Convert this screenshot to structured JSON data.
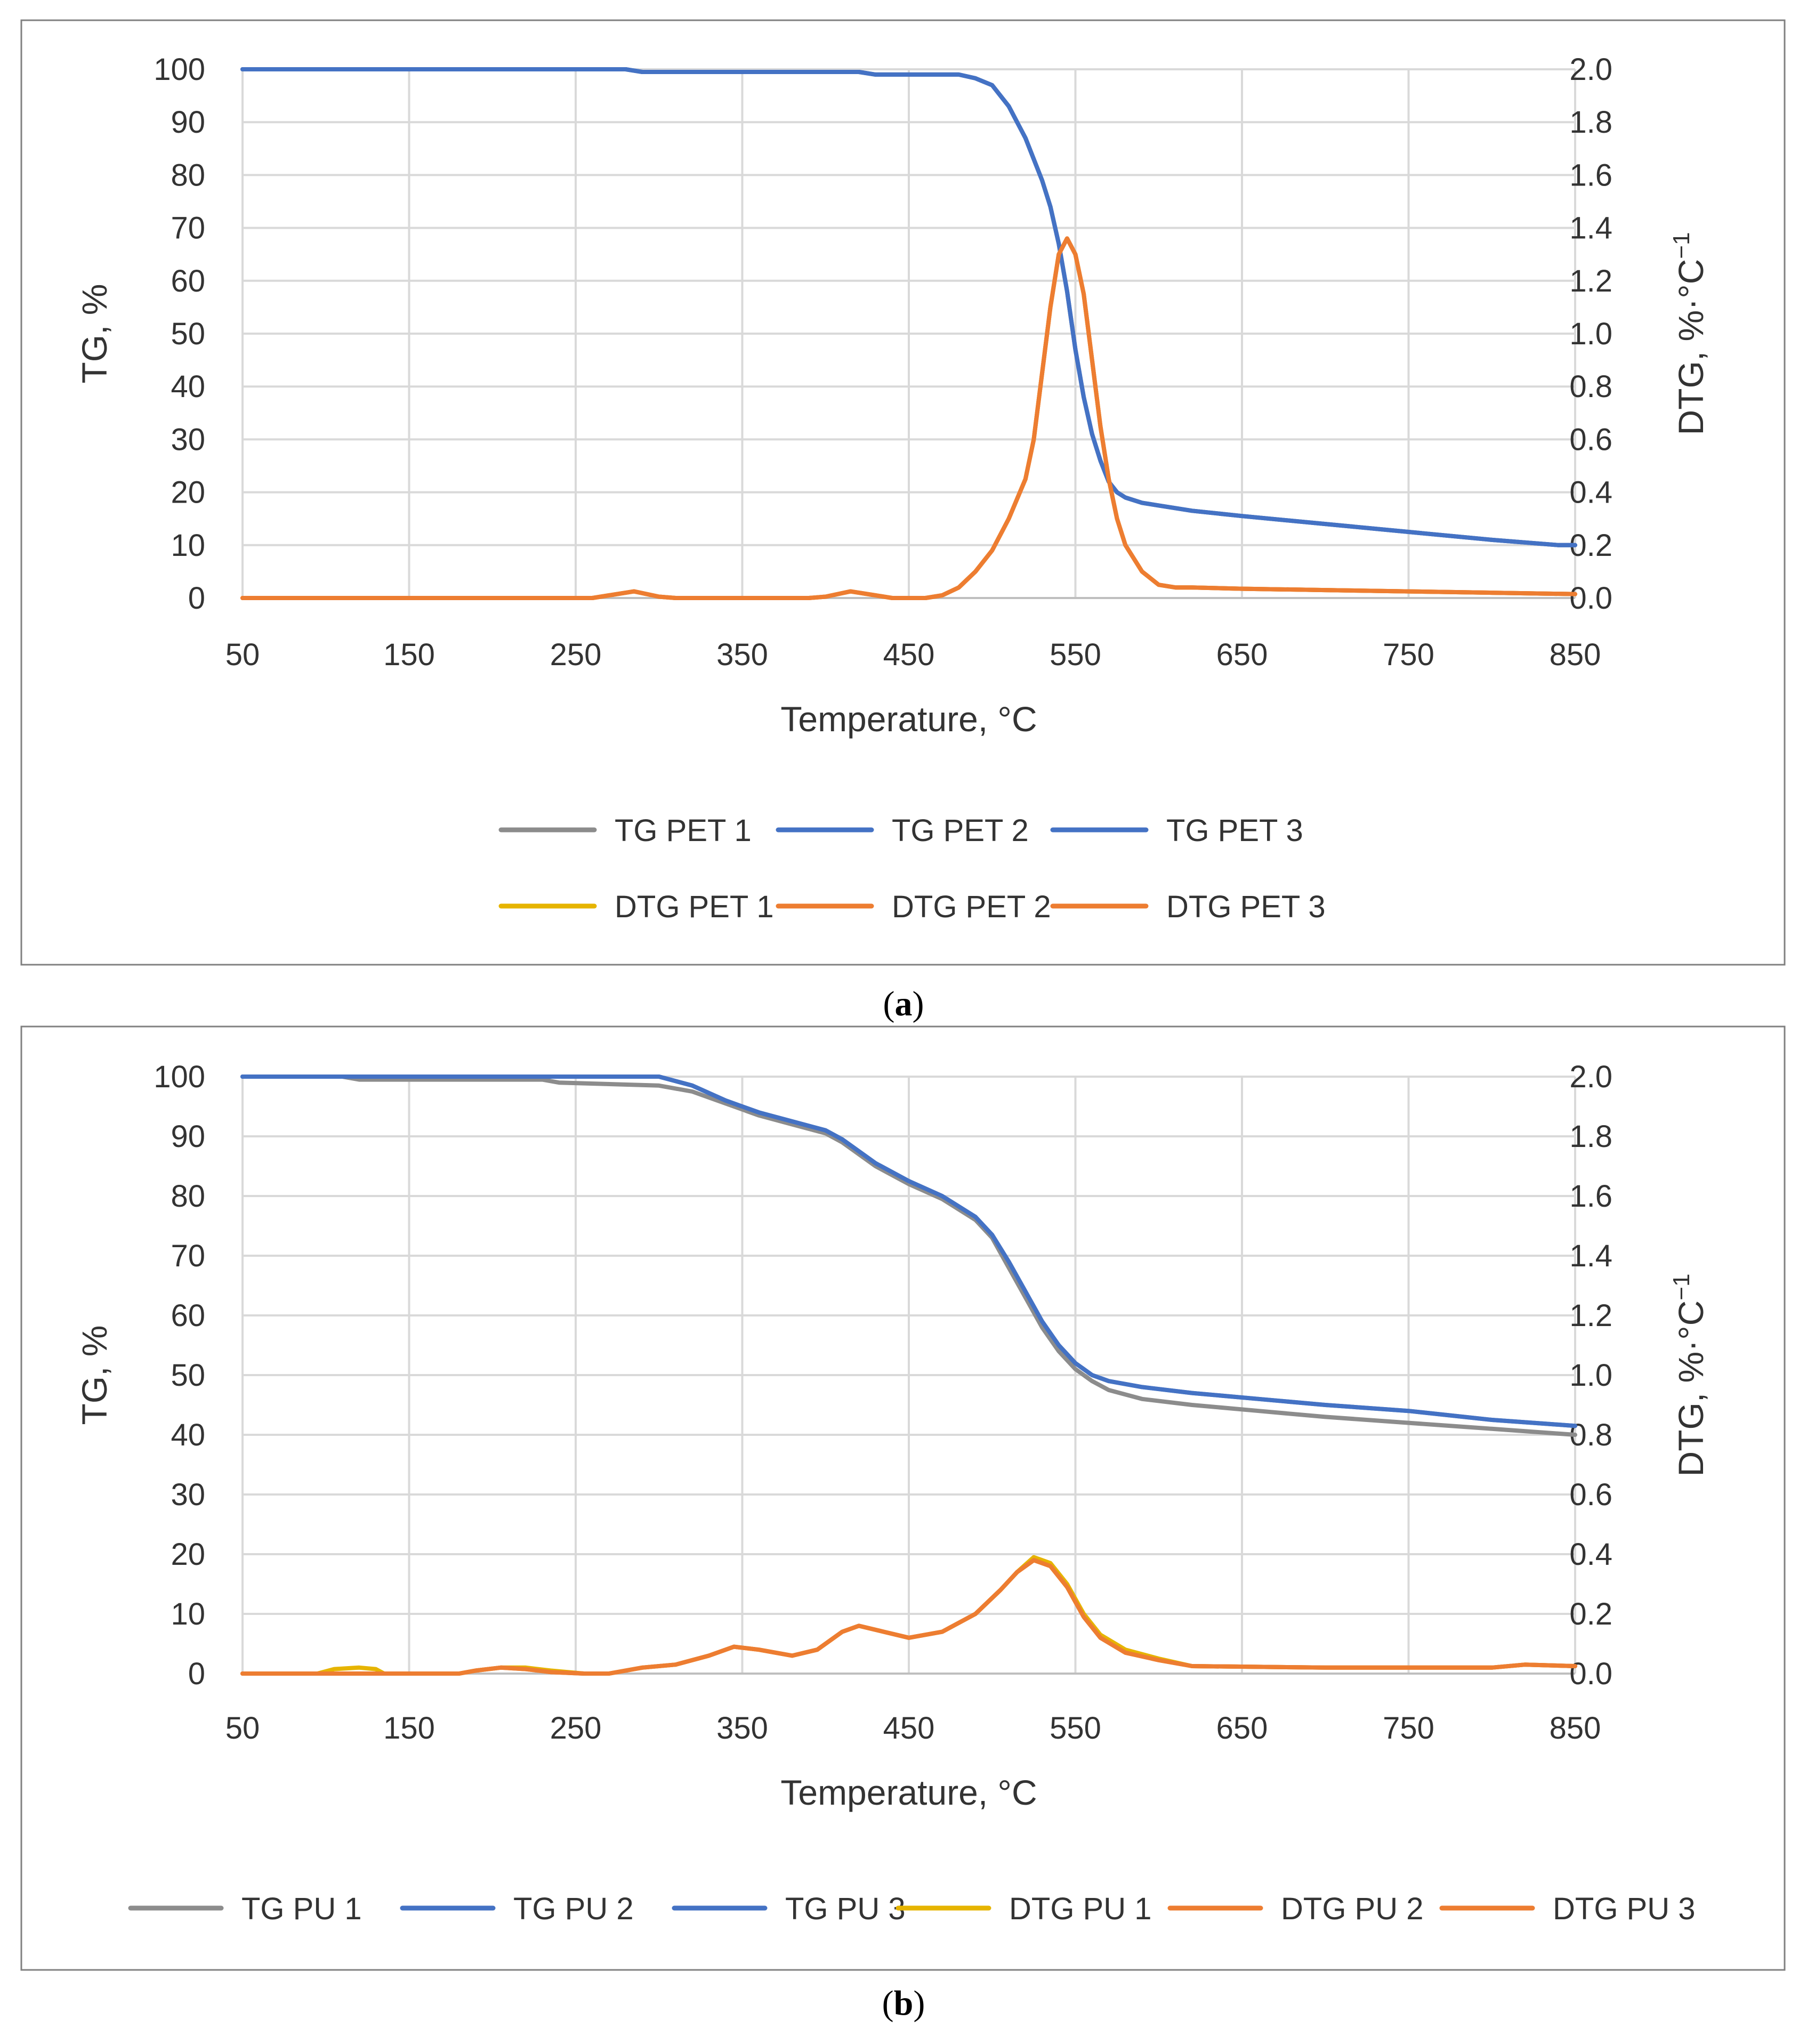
{
  "colors": {
    "tg_gray": "#8c8c8c",
    "tg_blue": "#4472c4",
    "dtg_yellow": "#e6b400",
    "dtg_orange": "#ed7d31",
    "grid": "#d9d9d9",
    "frame": "#808080",
    "text": "#333333"
  },
  "chart_data": [
    {
      "type": "line",
      "panel": "a",
      "caption": {
        "open": "(",
        "letter": "a",
        "close": ")"
      },
      "xlabel": "Temperature, °C",
      "ylabel": "TG, %",
      "y2label": "DTG, %·°C",
      "y2label_sup": "−1",
      "xlim": [
        50,
        850
      ],
      "ylim": [
        0,
        100
      ],
      "y2lim": [
        0,
        2.0
      ],
      "xticks": [
        "50",
        "150",
        "250",
        "350",
        "450",
        "550",
        "650",
        "750",
        "850"
      ],
      "yticks": [
        "0",
        "10",
        "20",
        "30",
        "40",
        "50",
        "60",
        "70",
        "80",
        "90",
        "100"
      ],
      "y2ticks": [
        "0.0",
        "0.2",
        "0.4",
        "0.6",
        "0.8",
        "1.0",
        "1.2",
        "1.4",
        "1.6",
        "1.8",
        "2.0"
      ],
      "grid": true,
      "legend_rows": [
        [
          "TG PET  1",
          "TG PET  2",
          "TG PET  3"
        ],
        [
          "DTG PET 1",
          "DTG PET 2",
          "DTG PET 3"
        ]
      ],
      "series": [
        {
          "name": "TG PET  1",
          "axis": "left",
          "color": "#8c8c8c",
          "x": [
            50,
            280,
            290,
            420,
            430,
            480,
            490,
            500,
            510,
            520,
            530,
            535,
            540,
            545,
            550,
            555,
            560,
            565,
            570,
            575,
            580,
            590,
            600,
            620,
            650,
            700,
            750,
            800,
            840,
            850
          ],
          "y": [
            100,
            100,
            99.5,
            99.5,
            99,
            99,
            98.3,
            97,
            93,
            87,
            79,
            74,
            67,
            58,
            47,
            38,
            31,
            26,
            22,
            20,
            19,
            18,
            17.5,
            16.5,
            15.5,
            14,
            12.5,
            11,
            10,
            10
          ]
        },
        {
          "name": "TG PET  2",
          "axis": "left",
          "color": "#4472c4",
          "x": [
            50,
            280,
            290,
            420,
            430,
            480,
            490,
            500,
            510,
            520,
            530,
            535,
            540,
            545,
            550,
            555,
            560,
            565,
            570,
            575,
            580,
            590,
            600,
            620,
            650,
            700,
            750,
            800,
            840,
            850
          ],
          "y": [
            100,
            100,
            99.5,
            99.5,
            99,
            99,
            98.3,
            97,
            93,
            87,
            79,
            74,
            67,
            58,
            47,
            38,
            31,
            26,
            22,
            20,
            19,
            18,
            17.5,
            16.5,
            15.5,
            14,
            12.5,
            11,
            10,
            10
          ]
        },
        {
          "name": "TG PET  3",
          "axis": "left",
          "color": "#4472c4",
          "x": [
            50,
            280,
            290,
            420,
            430,
            480,
            490,
            500,
            510,
            520,
            530,
            535,
            540,
            545,
            550,
            555,
            560,
            565,
            570,
            575,
            580,
            590,
            600,
            620,
            650,
            700,
            750,
            800,
            840,
            850
          ],
          "y": [
            100,
            100,
            99.5,
            99.5,
            99,
            99,
            98.3,
            97,
            93,
            87,
            79,
            74,
            67,
            58,
            47,
            38,
            31,
            26,
            22,
            20,
            19,
            18,
            17.5,
            16.5,
            15.5,
            14,
            12.5,
            11,
            10,
            10
          ]
        },
        {
          "name": "DTG PET 1",
          "axis": "right",
          "color": "#e6b400",
          "x": [
            50,
            260,
            270,
            285,
            300,
            310,
            390,
            400,
            415,
            430,
            440,
            460,
            470,
            480,
            490,
            500,
            510,
            520,
            525,
            530,
            535,
            540,
            545,
            550,
            555,
            560,
            565,
            570,
            575,
            580,
            590,
            600,
            610,
            620,
            650,
            700,
            750,
            800,
            850
          ],
          "y": [
            0,
            0,
            0.01,
            0.025,
            0.005,
            0,
            0,
            0.005,
            0.025,
            0.01,
            0,
            0,
            0.01,
            0.04,
            0.1,
            0.18,
            0.3,
            0.45,
            0.6,
            0.85,
            1.1,
            1.3,
            1.36,
            1.3,
            1.15,
            0.9,
            0.65,
            0.45,
            0.3,
            0.2,
            0.1,
            0.05,
            0.04,
            0.04,
            0.035,
            0.03,
            0.025,
            0.02,
            0.015
          ]
        },
        {
          "name": "DTG PET 2",
          "axis": "right",
          "color": "#ed7d31",
          "x": [
            50,
            260,
            270,
            285,
            300,
            310,
            390,
            400,
            415,
            430,
            440,
            460,
            470,
            480,
            490,
            500,
            510,
            520,
            525,
            530,
            535,
            540,
            545,
            550,
            555,
            560,
            565,
            570,
            575,
            580,
            590,
            600,
            610,
            620,
            650,
            700,
            750,
            800,
            850
          ],
          "y": [
            0,
            0,
            0.01,
            0.025,
            0.005,
            0,
            0,
            0.005,
            0.025,
            0.01,
            0,
            0,
            0.01,
            0.04,
            0.1,
            0.18,
            0.3,
            0.45,
            0.6,
            0.85,
            1.1,
            1.3,
            1.36,
            1.3,
            1.15,
            0.9,
            0.65,
            0.45,
            0.3,
            0.2,
            0.1,
            0.05,
            0.04,
            0.04,
            0.035,
            0.03,
            0.025,
            0.02,
            0.015
          ]
        },
        {
          "name": "DTG PET 3",
          "axis": "right",
          "color": "#ed7d31",
          "x": [
            50,
            260,
            270,
            285,
            300,
            310,
            390,
            400,
            415,
            430,
            440,
            460,
            470,
            480,
            490,
            500,
            510,
            520,
            525,
            530,
            535,
            540,
            545,
            550,
            555,
            560,
            565,
            570,
            575,
            580,
            590,
            600,
            610,
            620,
            650,
            700,
            750,
            800,
            850
          ],
          "y": [
            0,
            0,
            0.01,
            0.025,
            0.005,
            0,
            0,
            0.005,
            0.025,
            0.01,
            0,
            0,
            0.01,
            0.04,
            0.1,
            0.18,
            0.3,
            0.45,
            0.6,
            0.85,
            1.1,
            1.3,
            1.36,
            1.3,
            1.15,
            0.9,
            0.65,
            0.45,
            0.3,
            0.2,
            0.1,
            0.05,
            0.04,
            0.04,
            0.035,
            0.03,
            0.025,
            0.02,
            0.015
          ]
        }
      ]
    },
    {
      "type": "line",
      "panel": "b",
      "caption": {
        "open": "(",
        "letter": "b",
        "close": ")"
      },
      "xlabel": "Temperature, °C",
      "ylabel": "TG, %",
      "y2label": "DTG, %·°C",
      "y2label_sup": "−1",
      "xlim": [
        50,
        850
      ],
      "ylim": [
        0,
        100
      ],
      "y2lim": [
        0,
        2.0
      ],
      "xticks": [
        "50",
        "150",
        "250",
        "350",
        "450",
        "550",
        "650",
        "750",
        "850"
      ],
      "yticks": [
        "0",
        "10",
        "20",
        "30",
        "40",
        "50",
        "60",
        "70",
        "80",
        "90",
        "100"
      ],
      "y2ticks": [
        "0.0",
        "0.2",
        "0.4",
        "0.6",
        "0.8",
        "1.0",
        "1.2",
        "1.4",
        "1.6",
        "1.8",
        "2.0"
      ],
      "grid": true,
      "legend_rows": [
        [
          "TG PU  1",
          "TG PU  2",
          "TG PU  3",
          "DTG PU 1",
          "DTG PU 2",
          "DTG PU 3"
        ]
      ],
      "series": [
        {
          "name": "TG PU  1",
          "axis": "left",
          "color": "#8c8c8c",
          "x": [
            50,
            110,
            120,
            230,
            240,
            300,
            320,
            340,
            360,
            380,
            400,
            410,
            430,
            450,
            470,
            490,
            500,
            510,
            520,
            530,
            540,
            550,
            560,
            570,
            590,
            620,
            660,
            700,
            750,
            800,
            850
          ],
          "y": [
            100,
            100,
            99.5,
            99.5,
            99,
            98.5,
            97.5,
            95.5,
            93.5,
            92,
            90.5,
            89,
            85,
            82,
            79.5,
            76,
            73,
            68,
            63,
            58,
            54,
            51,
            49,
            47.5,
            46,
            45,
            44,
            43,
            42,
            41,
            40
          ]
        },
        {
          "name": "TG PU  2",
          "axis": "left",
          "color": "#4472c4",
          "x": [
            50,
            300,
            320,
            340,
            360,
            380,
            400,
            410,
            430,
            450,
            470,
            490,
            500,
            510,
            520,
            530,
            540,
            550,
            560,
            570,
            590,
            620,
            660,
            700,
            750,
            800,
            850
          ],
          "y": [
            100,
            100,
            98.5,
            96,
            94,
            92.5,
            91,
            89.5,
            85.5,
            82.5,
            80,
            76.5,
            73.5,
            69,
            64,
            59,
            55,
            52,
            50,
            49,
            48,
            47,
            46,
            45,
            44,
            42.5,
            41.5
          ]
        },
        {
          "name": "TG PU  3",
          "axis": "left",
          "color": "#4472c4",
          "x": [
            50,
            300,
            320,
            340,
            360,
            380,
            400,
            410,
            430,
            450,
            470,
            490,
            500,
            510,
            520,
            530,
            540,
            550,
            560,
            570,
            590,
            620,
            660,
            700,
            750,
            800,
            850
          ],
          "y": [
            100,
            100,
            98.5,
            96,
            94,
            92.5,
            91,
            89.5,
            85.5,
            82.5,
            80,
            76.5,
            73.5,
            69,
            64,
            59,
            55,
            52,
            50,
            49,
            48,
            47,
            46,
            45,
            44,
            42.5,
            41.5
          ]
        },
        {
          "name": "DTG PU 1",
          "axis": "right",
          "color": "#e6b400",
          "x": [
            50,
            95,
            105,
            120,
            130,
            135,
            180,
            190,
            205,
            220,
            235,
            255,
            270,
            290,
            310,
            330,
            345,
            360,
            380,
            395,
            410,
            420,
            435,
            450,
            470,
            490,
            505,
            515,
            525,
            535,
            545,
            555,
            565,
            580,
            600,
            620,
            700,
            800,
            820,
            850
          ],
          "y": [
            0,
            0,
            0.015,
            0.02,
            0.015,
            0,
            0,
            0.01,
            0.02,
            0.02,
            0.01,
            0,
            0,
            0.02,
            0.03,
            0.06,
            0.09,
            0.08,
            0.06,
            0.08,
            0.14,
            0.16,
            0.14,
            0.12,
            0.14,
            0.2,
            0.28,
            0.34,
            0.39,
            0.37,
            0.3,
            0.2,
            0.13,
            0.08,
            0.05,
            0.025,
            0.02,
            0.02,
            0.03,
            0.025
          ]
        },
        {
          "name": "DTG PU 2",
          "axis": "right",
          "color": "#ed7d31",
          "x": [
            50,
            180,
            190,
            205,
            220,
            235,
            255,
            270,
            290,
            310,
            330,
            345,
            360,
            380,
            395,
            410,
            420,
            435,
            450,
            470,
            490,
            505,
            515,
            525,
            535,
            545,
            555,
            565,
            580,
            600,
            620,
            700,
            800,
            820,
            850
          ],
          "y": [
            0,
            0,
            0.01,
            0.02,
            0.015,
            0.005,
            0,
            0,
            0.02,
            0.03,
            0.06,
            0.09,
            0.08,
            0.06,
            0.08,
            0.14,
            0.16,
            0.14,
            0.12,
            0.14,
            0.2,
            0.28,
            0.34,
            0.38,
            0.36,
            0.29,
            0.19,
            0.12,
            0.07,
            0.045,
            0.025,
            0.02,
            0.02,
            0.03,
            0.025
          ]
        },
        {
          "name": "DTG PU 3",
          "axis": "right",
          "color": "#ed7d31",
          "x": [
            50,
            180,
            190,
            205,
            220,
            235,
            255,
            270,
            290,
            310,
            330,
            345,
            360,
            380,
            395,
            410,
            420,
            435,
            450,
            470,
            490,
            505,
            515,
            525,
            535,
            545,
            555,
            565,
            580,
            600,
            620,
            700,
            800,
            820,
            850
          ],
          "y": [
            0,
            0,
            0.01,
            0.02,
            0.015,
            0.005,
            0,
            0,
            0.02,
            0.03,
            0.06,
            0.09,
            0.08,
            0.06,
            0.08,
            0.14,
            0.16,
            0.14,
            0.12,
            0.14,
            0.2,
            0.28,
            0.34,
            0.38,
            0.36,
            0.29,
            0.19,
            0.12,
            0.07,
            0.045,
            0.025,
            0.02,
            0.02,
            0.03,
            0.025
          ]
        }
      ]
    }
  ]
}
